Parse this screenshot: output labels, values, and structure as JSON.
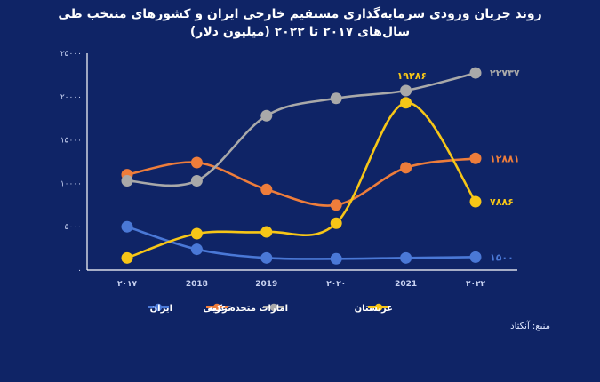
{
  "header": {
    "title_line1": "روند جریان ورودی سرمایه‌گذاری مستقیم خارجی ایران و کشورهای منتخب طی",
    "title_line2": "سال‌های ۲۰۱۷ تا ۲۰۲۲ (میلیون دلار)"
  },
  "source_note": "منبع: آنکتاد",
  "colors": {
    "background": "#0f2466",
    "iran": "#4a78d6",
    "turkey": "#ee7d3b",
    "uae": "#a9a9a9",
    "saudi": "#f7c617",
    "axis_text": "#c9d3f2"
  },
  "chart_data": {
    "type": "line",
    "x": [
      "۲۰۱۷",
      "2018",
      "2019",
      "۲۰۲۰",
      "2021",
      "۲۰۲۲"
    ],
    "y_ticks": [
      "۰",
      "۵۰۰۰",
      "۱۰۰۰۰",
      "۱۵۰۰۰",
      "۲۰۰۰۰",
      "۲۵۰۰۰"
    ],
    "ylim": [
      0,
      25000
    ],
    "grid": false,
    "legend_position": "bottom",
    "series": [
      {
        "name": "ایران",
        "key": "iran",
        "values": [
          5000,
          2400,
          1400,
          1300,
          1400,
          1500
        ],
        "end_label": "۱۵۰۰"
      },
      {
        "name": "ترکیه",
        "key": "turkey",
        "values": [
          11000,
          12400,
          9300,
          7500,
          11800,
          12881
        ],
        "end_label": "۱۲۸۸۱"
      },
      {
        "name": "امارات متحده عربی",
        "key": "uae",
        "values": [
          10300,
          10300,
          17800,
          19800,
          20700,
          22737
        ],
        "end_label": "۲۲۷۳۷"
      },
      {
        "name": "عربستان",
        "key": "saudi",
        "values": [
          1400,
          4200,
          4400,
          5400,
          19286,
          7886
        ],
        "end_label": "۷۸۸۶",
        "peak_label": "۱۹۲۸۶",
        "peak_index": 4
      }
    ]
  }
}
